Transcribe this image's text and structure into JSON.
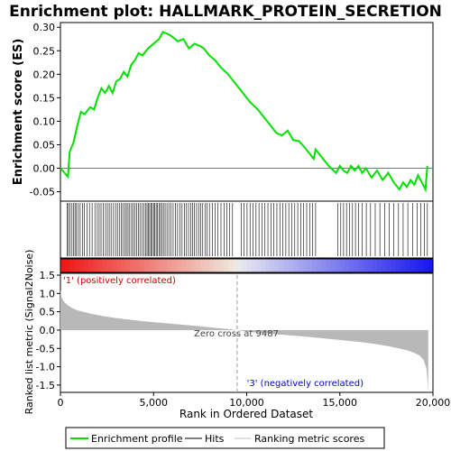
{
  "chart_data": {
    "type": "line",
    "title": "Enrichment plot: HALLMARK_PROTEIN_SECRETION",
    "xlabel": "Rank in Ordered Dataset",
    "ylabel_top": "Enrichment score (ES)",
    "ylabel_bottom": "Ranked list metric (Signal2Noise)",
    "xlim": [
      0,
      20000
    ],
    "es_ylim": [
      -0.07,
      0.31
    ],
    "metric_ylim": [
      -1.7,
      1.55
    ],
    "x_ticks": [
      0,
      5000,
      10000,
      15000,
      20000
    ],
    "x_tick_labels": [
      "0",
      "5,000",
      "10,000",
      "15,000",
      "20,000"
    ],
    "es_ticks": [
      -0.05,
      0.0,
      0.05,
      0.1,
      0.15,
      0.2,
      0.25,
      0.3
    ],
    "es_tick_labels": [
      "-0.05",
      "0.00",
      "0.05",
      "0.10",
      "0.15",
      "0.20",
      "0.25",
      "0.30"
    ],
    "metric_ticks": [
      -1.5,
      -1.0,
      -0.5,
      0.0,
      0.5,
      1.0,
      1.5
    ],
    "metric_tick_labels": [
      "-1.5",
      "-1.0",
      "-0.5",
      "0.0",
      "0.5",
      "1.0",
      "1.5"
    ],
    "es_curve": {
      "x": [
        0,
        400,
        500,
        700,
        900,
        1100,
        1300,
        1600,
        1800,
        2000,
        2200,
        2400,
        2600,
        2800,
        3000,
        3200,
        3400,
        3600,
        3800,
        4000,
        4200,
        4400,
        4700,
        5000,
        5300,
        5500,
        5800,
        6000,
        6300,
        6600,
        6900,
        7200,
        7500,
        7700,
        8000,
        8300,
        8600,
        9000,
        9400,
        9800,
        10200,
        10600,
        11000,
        11300,
        11600,
        11900,
        12200,
        12500,
        12800,
        13100,
        13400,
        13600,
        13700,
        14000,
        14400,
        14800,
        15000,
        15200,
        15400,
        15600,
        15800,
        16000,
        16200,
        16400,
        16700,
        17000,
        17300,
        17600,
        17900,
        18200,
        18400,
        18600,
        18800,
        19000,
        19200,
        19400,
        19600,
        19700
      ],
      "y": [
        0.0,
        -0.018,
        0.035,
        0.055,
        0.09,
        0.12,
        0.115,
        0.13,
        0.125,
        0.15,
        0.17,
        0.16,
        0.175,
        0.16,
        0.185,
        0.19,
        0.205,
        0.195,
        0.22,
        0.23,
        0.245,
        0.24,
        0.255,
        0.265,
        0.275,
        0.29,
        0.285,
        0.28,
        0.27,
        0.275,
        0.255,
        0.265,
        0.26,
        0.255,
        0.24,
        0.23,
        0.215,
        0.2,
        0.18,
        0.16,
        0.14,
        0.125,
        0.105,
        0.09,
        0.075,
        0.07,
        0.08,
        0.06,
        0.058,
        0.045,
        0.03,
        0.02,
        0.04,
        0.025,
        0.005,
        -0.01,
        0.005,
        -0.005,
        -0.01,
        0.005,
        -0.005,
        0.005,
        -0.01,
        0.0,
        -0.02,
        -0.005,
        -0.025,
        -0.01,
        -0.03,
        -0.045,
        -0.03,
        -0.04,
        -0.025,
        -0.035,
        -0.015,
        -0.03,
        -0.045,
        0.005
      ]
    },
    "hits": [
      370,
      430,
      520,
      620,
      700,
      780,
      860,
      960,
      1060,
      1180,
      1280,
      1420,
      1560,
      1700,
      1850,
      1980,
      2080,
      2180,
      2300,
      2420,
      2520,
      2620,
      2720,
      2850,
      2960,
      3060,
      3160,
      3260,
      3350,
      3450,
      3540,
      3630,
      3720,
      3820,
      3910,
      4000,
      4090,
      4180,
      4270,
      4370,
      4470,
      4570,
      4650,
      4720,
      4790,
      4860,
      4930,
      5000,
      5070,
      5140,
      5210,
      5290,
      5370,
      5450,
      5530,
      5620,
      5720,
      5820,
      5930,
      6050,
      6170,
      6290,
      6410,
      6530,
      6650,
      6770,
      6880,
      6990,
      7090,
      7200,
      7310,
      7420,
      7530,
      7640,
      7760,
      7880,
      8000,
      8150,
      8300,
      8460,
      8620,
      8780,
      8930,
      9090,
      9240,
      9700,
      9860,
      10020,
      10180,
      10340,
      10500,
      10660,
      10820,
      10980,
      11140,
      11300,
      11460,
      11620,
      11780,
      11940,
      12100,
      12260,
      12420,
      12580,
      12740,
      12900,
      13060,
      13220,
      13380,
      13540,
      13700,
      14900,
      15050,
      15200,
      15360,
      15520,
      15680,
      15840,
      16000,
      16200,
      16420,
      16650,
      16900,
      17150,
      17400,
      17650,
      17900,
      18150,
      18400,
      18650,
      18900,
      19150,
      19350,
      19550,
      19700
    ],
    "metric": {
      "x": [
        0,
        50,
        150,
        300,
        500,
        800,
        1200,
        1700,
        2300,
        3000,
        3800,
        4700,
        5600,
        6500,
        7400,
        8300,
        9000,
        9487,
        10000,
        11000,
        12000,
        13000,
        14000,
        15000,
        16000,
        16800,
        17500,
        18100,
        18600,
        19000,
        19300,
        19500,
        19650,
        19750
      ],
      "y": [
        1.1,
        0.92,
        0.8,
        0.72,
        0.64,
        0.56,
        0.5,
        0.44,
        0.38,
        0.33,
        0.28,
        0.23,
        0.19,
        0.15,
        0.11,
        0.06,
        0.03,
        0.0,
        -0.04,
        -0.09,
        -0.13,
        -0.17,
        -0.22,
        -0.27,
        -0.32,
        -0.37,
        -0.43,
        -0.49,
        -0.55,
        -0.62,
        -0.7,
        -0.82,
        -1.05,
        -1.6
      ]
    },
    "zero_cross": 9487,
    "annotations": {
      "positive": "'1' (positively correlated)",
      "negative": "'3' (negatively correlated)",
      "zero_cross": "Zero cross at 9487"
    },
    "legend": {
      "position": "bottom",
      "entries": [
        {
          "label": "Enrichment profile",
          "color": "#00e000"
        },
        {
          "label": "Hits",
          "color": "#000000"
        },
        {
          "label": "Ranking metric scores",
          "color": "#c0c0c0"
        }
      ]
    },
    "colors": {
      "es_line": "#00e000",
      "hit": "#000000",
      "metric_fill": "#b8b8b8",
      "positive_text": "#cc0000",
      "negative_text": "#0000cc"
    }
  }
}
